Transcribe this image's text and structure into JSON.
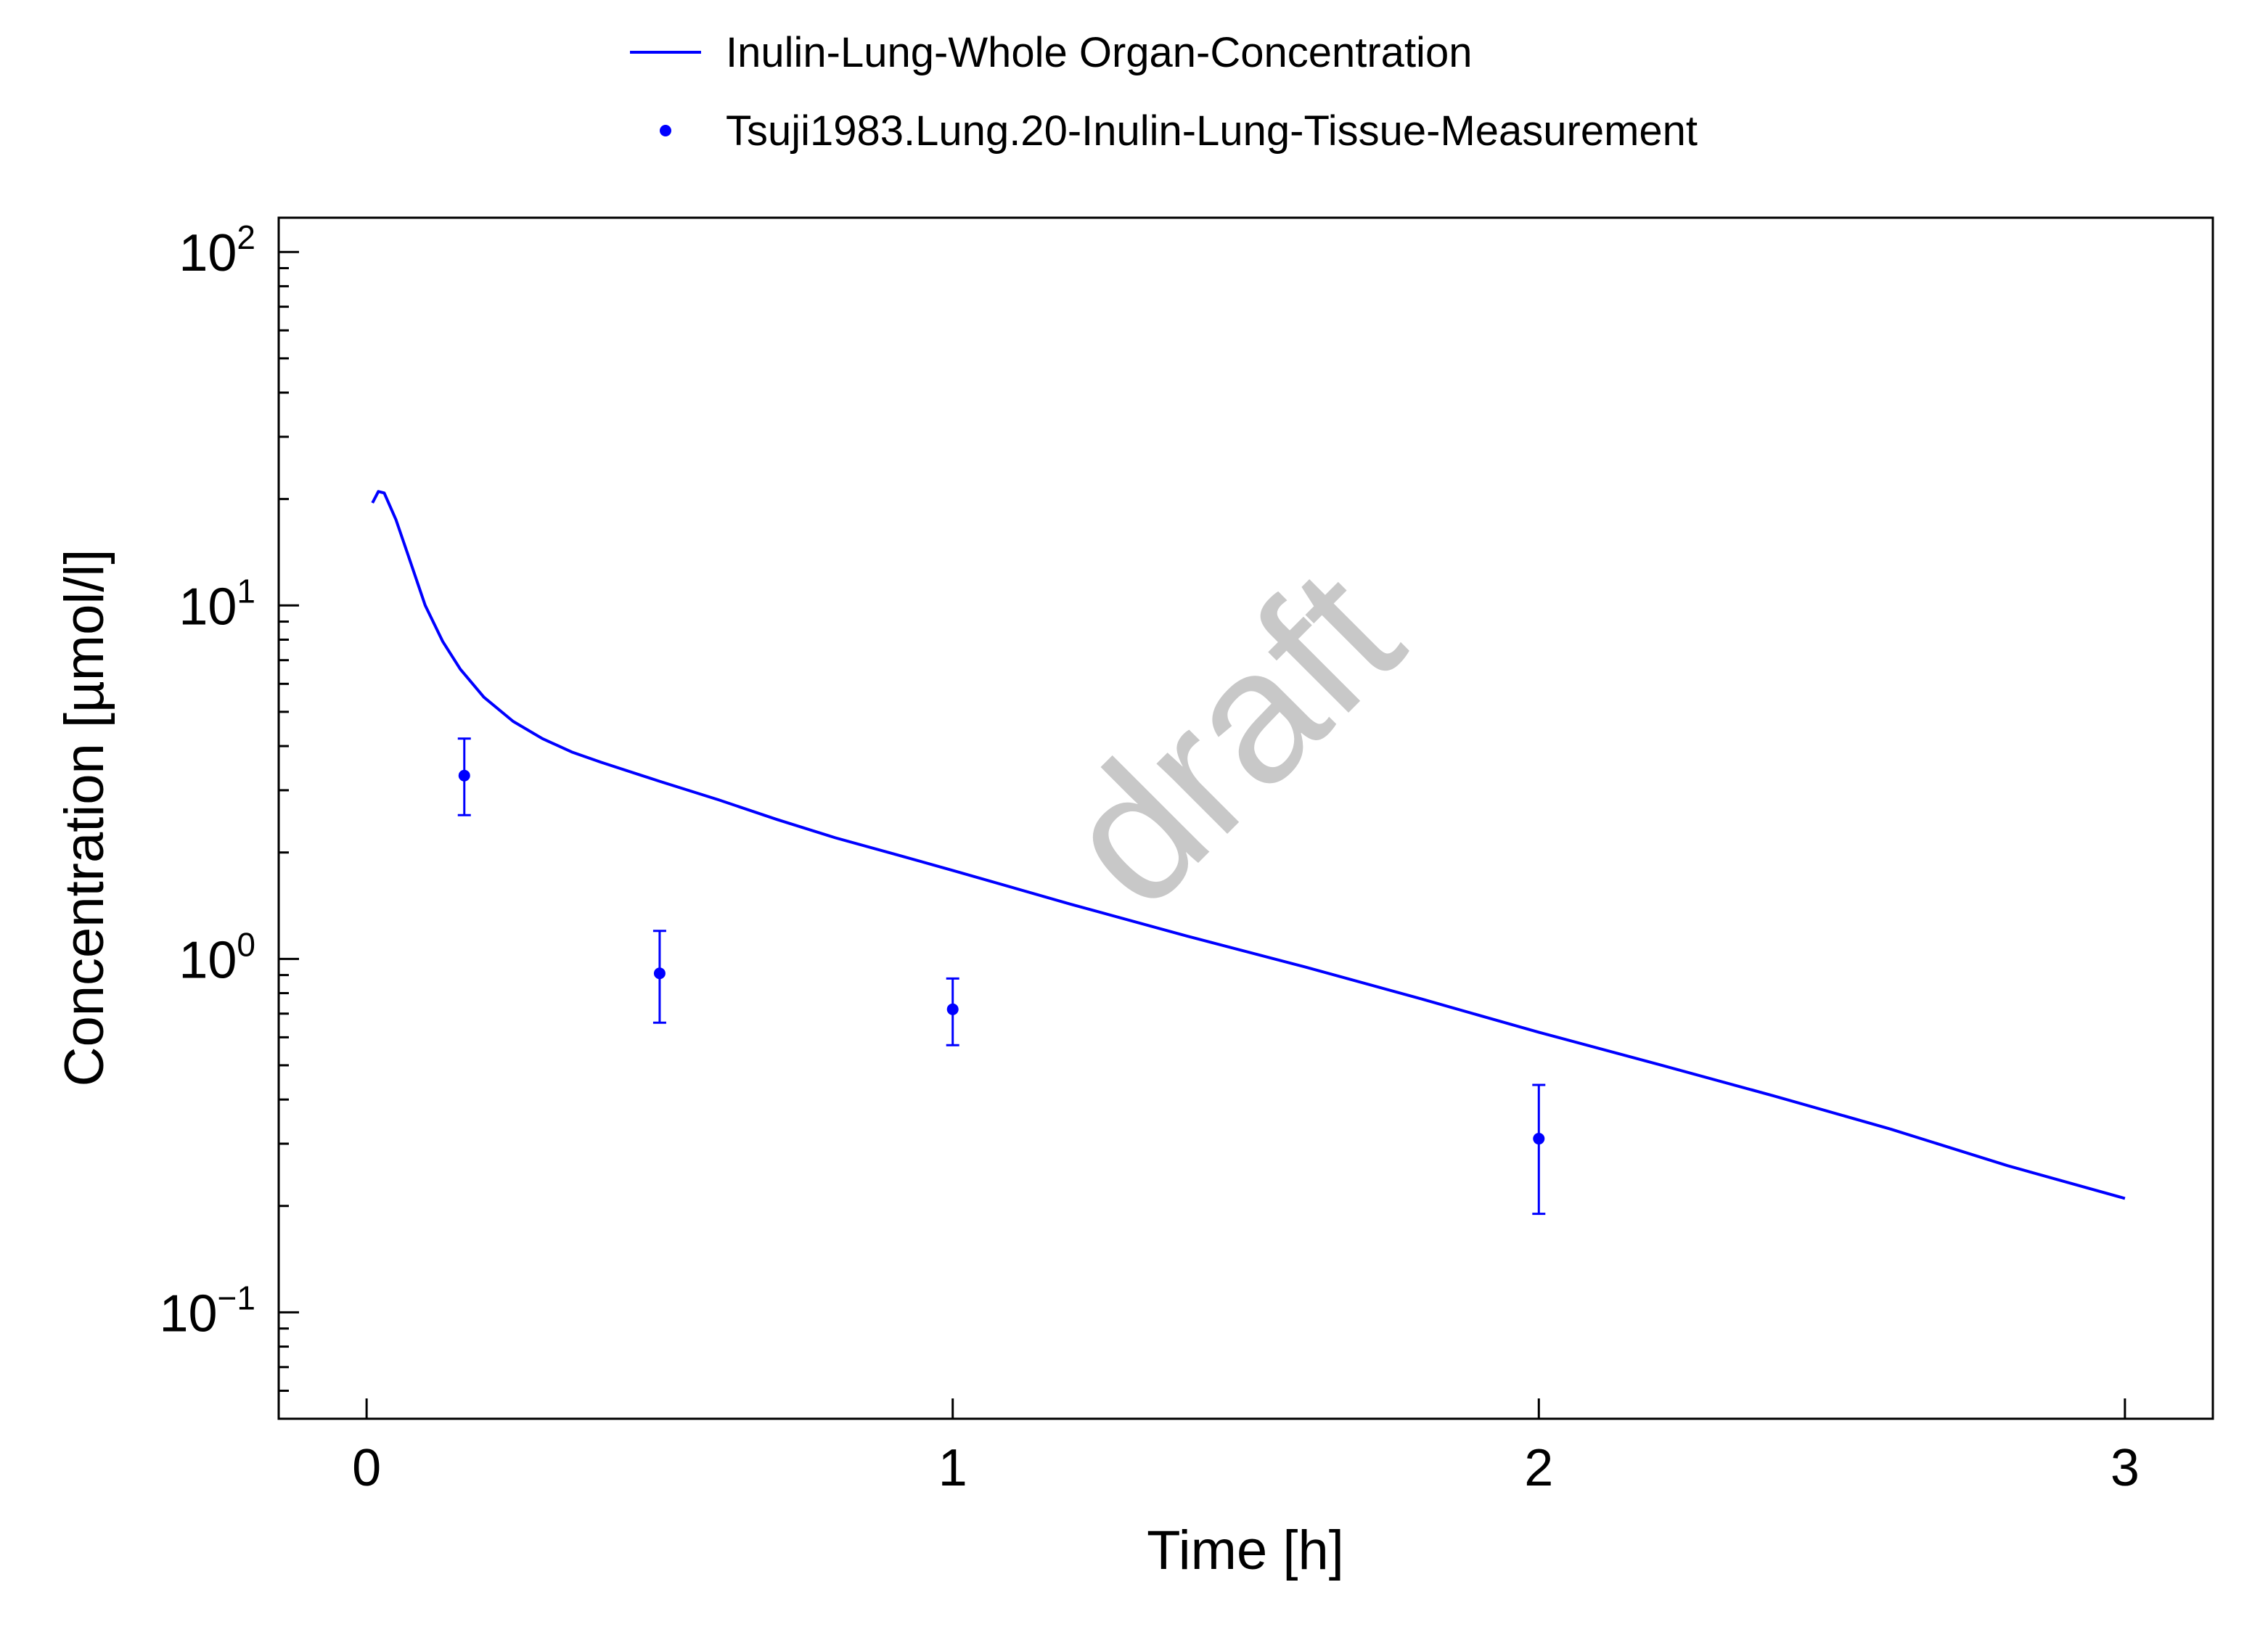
{
  "colors": {
    "series": "#0000ff",
    "axis": "#000000",
    "watermark": "#c8c8c8",
    "background": "#ffffff"
  },
  "watermark": "draft",
  "chart_data": {
    "type": "line",
    "title": "",
    "xlabel": "Time [h]",
    "ylabel": "Concentration [µmol/l]",
    "xlim": [
      -0.15,
      3.15
    ],
    "ylim": [
      0.05,
      125
    ],
    "yscale": "log",
    "grid": false,
    "legend_position": "top-center",
    "x_ticks": [
      {
        "value": 0,
        "label": "0"
      },
      {
        "value": 1,
        "label": "1"
      },
      {
        "value": 2,
        "label": "2"
      },
      {
        "value": 3,
        "label": "3"
      }
    ],
    "y_ticks": [
      {
        "value": 0.1,
        "base": "10",
        "exp": "−1"
      },
      {
        "value": 1,
        "base": "10",
        "exp": "0"
      },
      {
        "value": 10,
        "base": "10",
        "exp": "1"
      },
      {
        "value": 100,
        "base": "10",
        "exp": "2"
      }
    ],
    "series": [
      {
        "name": "Inulin-Lung-Whole Organ-Concentration",
        "kind": "line",
        "x": [
          0.01,
          0.02,
          0.03,
          0.05,
          0.07,
          0.1,
          0.13,
          0.16,
          0.2,
          0.25,
          0.3,
          0.35,
          0.4,
          0.5,
          0.6,
          0.7,
          0.8,
          0.9,
          1.0,
          1.2,
          1.4,
          1.6,
          1.8,
          2.0,
          2.2,
          2.4,
          2.6,
          2.8,
          3.0
        ],
        "y": [
          19.5,
          21.0,
          20.8,
          17.5,
          14.0,
          10.0,
          7.9,
          6.6,
          5.5,
          4.7,
          4.2,
          3.85,
          3.6,
          3.18,
          2.82,
          2.48,
          2.2,
          1.98,
          1.78,
          1.43,
          1.16,
          0.95,
          0.77,
          0.62,
          0.505,
          0.41,
          0.33,
          0.26,
          0.21
        ]
      },
      {
        "name": "Tsuji1983.Lung.20-Inulin-Lung-Tissue-Measurement",
        "kind": "scatter",
        "x": [
          0.1667,
          0.5,
          1.0,
          2.0
        ],
        "y": [
          3.3,
          0.91,
          0.72,
          0.31
        ],
        "y_lower": [
          2.55,
          0.66,
          0.57,
          0.19
        ],
        "y_upper": [
          4.2,
          1.2,
          0.88,
          0.44
        ]
      }
    ]
  }
}
